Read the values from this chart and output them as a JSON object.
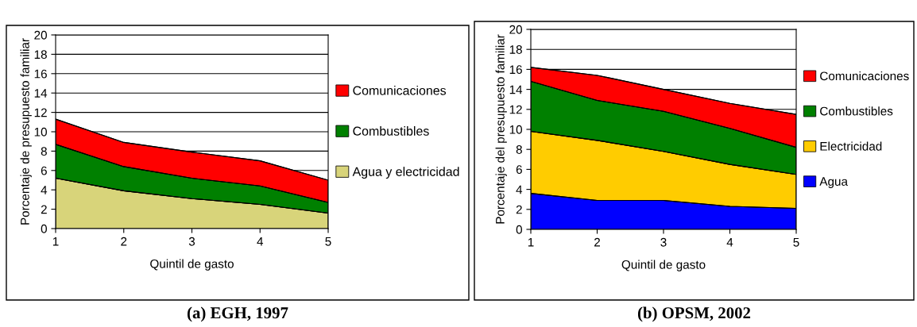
{
  "chart_data": [
    {
      "type": "area",
      "stacked": true,
      "title": "(a) EGH, 1997",
      "xlabel": "Quintil de gasto",
      "ylabel": "Porcentaje de presupuesto familiar",
      "x": [
        1,
        2,
        3,
        4,
        5
      ],
      "xlim": [
        1,
        5
      ],
      "xticks": [
        1,
        2,
        3,
        4,
        5
      ],
      "ylim": [
        0,
        20
      ],
      "yticks": [
        0,
        2,
        4,
        6,
        8,
        10,
        12,
        14,
        16,
        18,
        20
      ],
      "grid": "y",
      "legend": "right",
      "series": [
        {
          "name": "Agua y electricidad",
          "color": "#d8d47a",
          "values": [
            5.2,
            3.9,
            3.1,
            2.5,
            1.6
          ]
        },
        {
          "name": "Combustibles",
          "color": "#008000",
          "values": [
            3.5,
            2.5,
            2.1,
            1.9,
            1.1
          ]
        },
        {
          "name": "Comunicaciones",
          "color": "#ff0000",
          "values": [
            2.6,
            2.5,
            2.7,
            2.6,
            2.3
          ]
        }
      ]
    },
    {
      "type": "area",
      "stacked": true,
      "title": "(b) OPSM, 2002",
      "xlabel": "Quintil de gasto",
      "ylabel": "Porcentaje del presupuesto familiar",
      "x": [
        1,
        2,
        3,
        4,
        5
      ],
      "xlim": [
        1,
        5
      ],
      "xticks": [
        1,
        2,
        3,
        4,
        5
      ],
      "ylim": [
        0,
        20
      ],
      "yticks": [
        0,
        2,
        4,
        6,
        8,
        10,
        12,
        14,
        16,
        18,
        20
      ],
      "grid": "y",
      "legend": "right",
      "series": [
        {
          "name": "Agua",
          "color": "#0000ff",
          "values": [
            3.6,
            2.9,
            2.9,
            2.3,
            2.1
          ]
        },
        {
          "name": "Electricidad",
          "color": "#ffcc00",
          "values": [
            6.2,
            6.0,
            4.9,
            4.2,
            3.4
          ]
        },
        {
          "name": "Combustibles",
          "color": "#008000",
          "values": [
            5.0,
            4.0,
            4.0,
            3.6,
            2.7
          ]
        },
        {
          "name": "Comunicaciones",
          "color": "#ff0000",
          "values": [
            1.4,
            2.5,
            2.2,
            2.5,
            3.3
          ]
        }
      ]
    }
  ]
}
